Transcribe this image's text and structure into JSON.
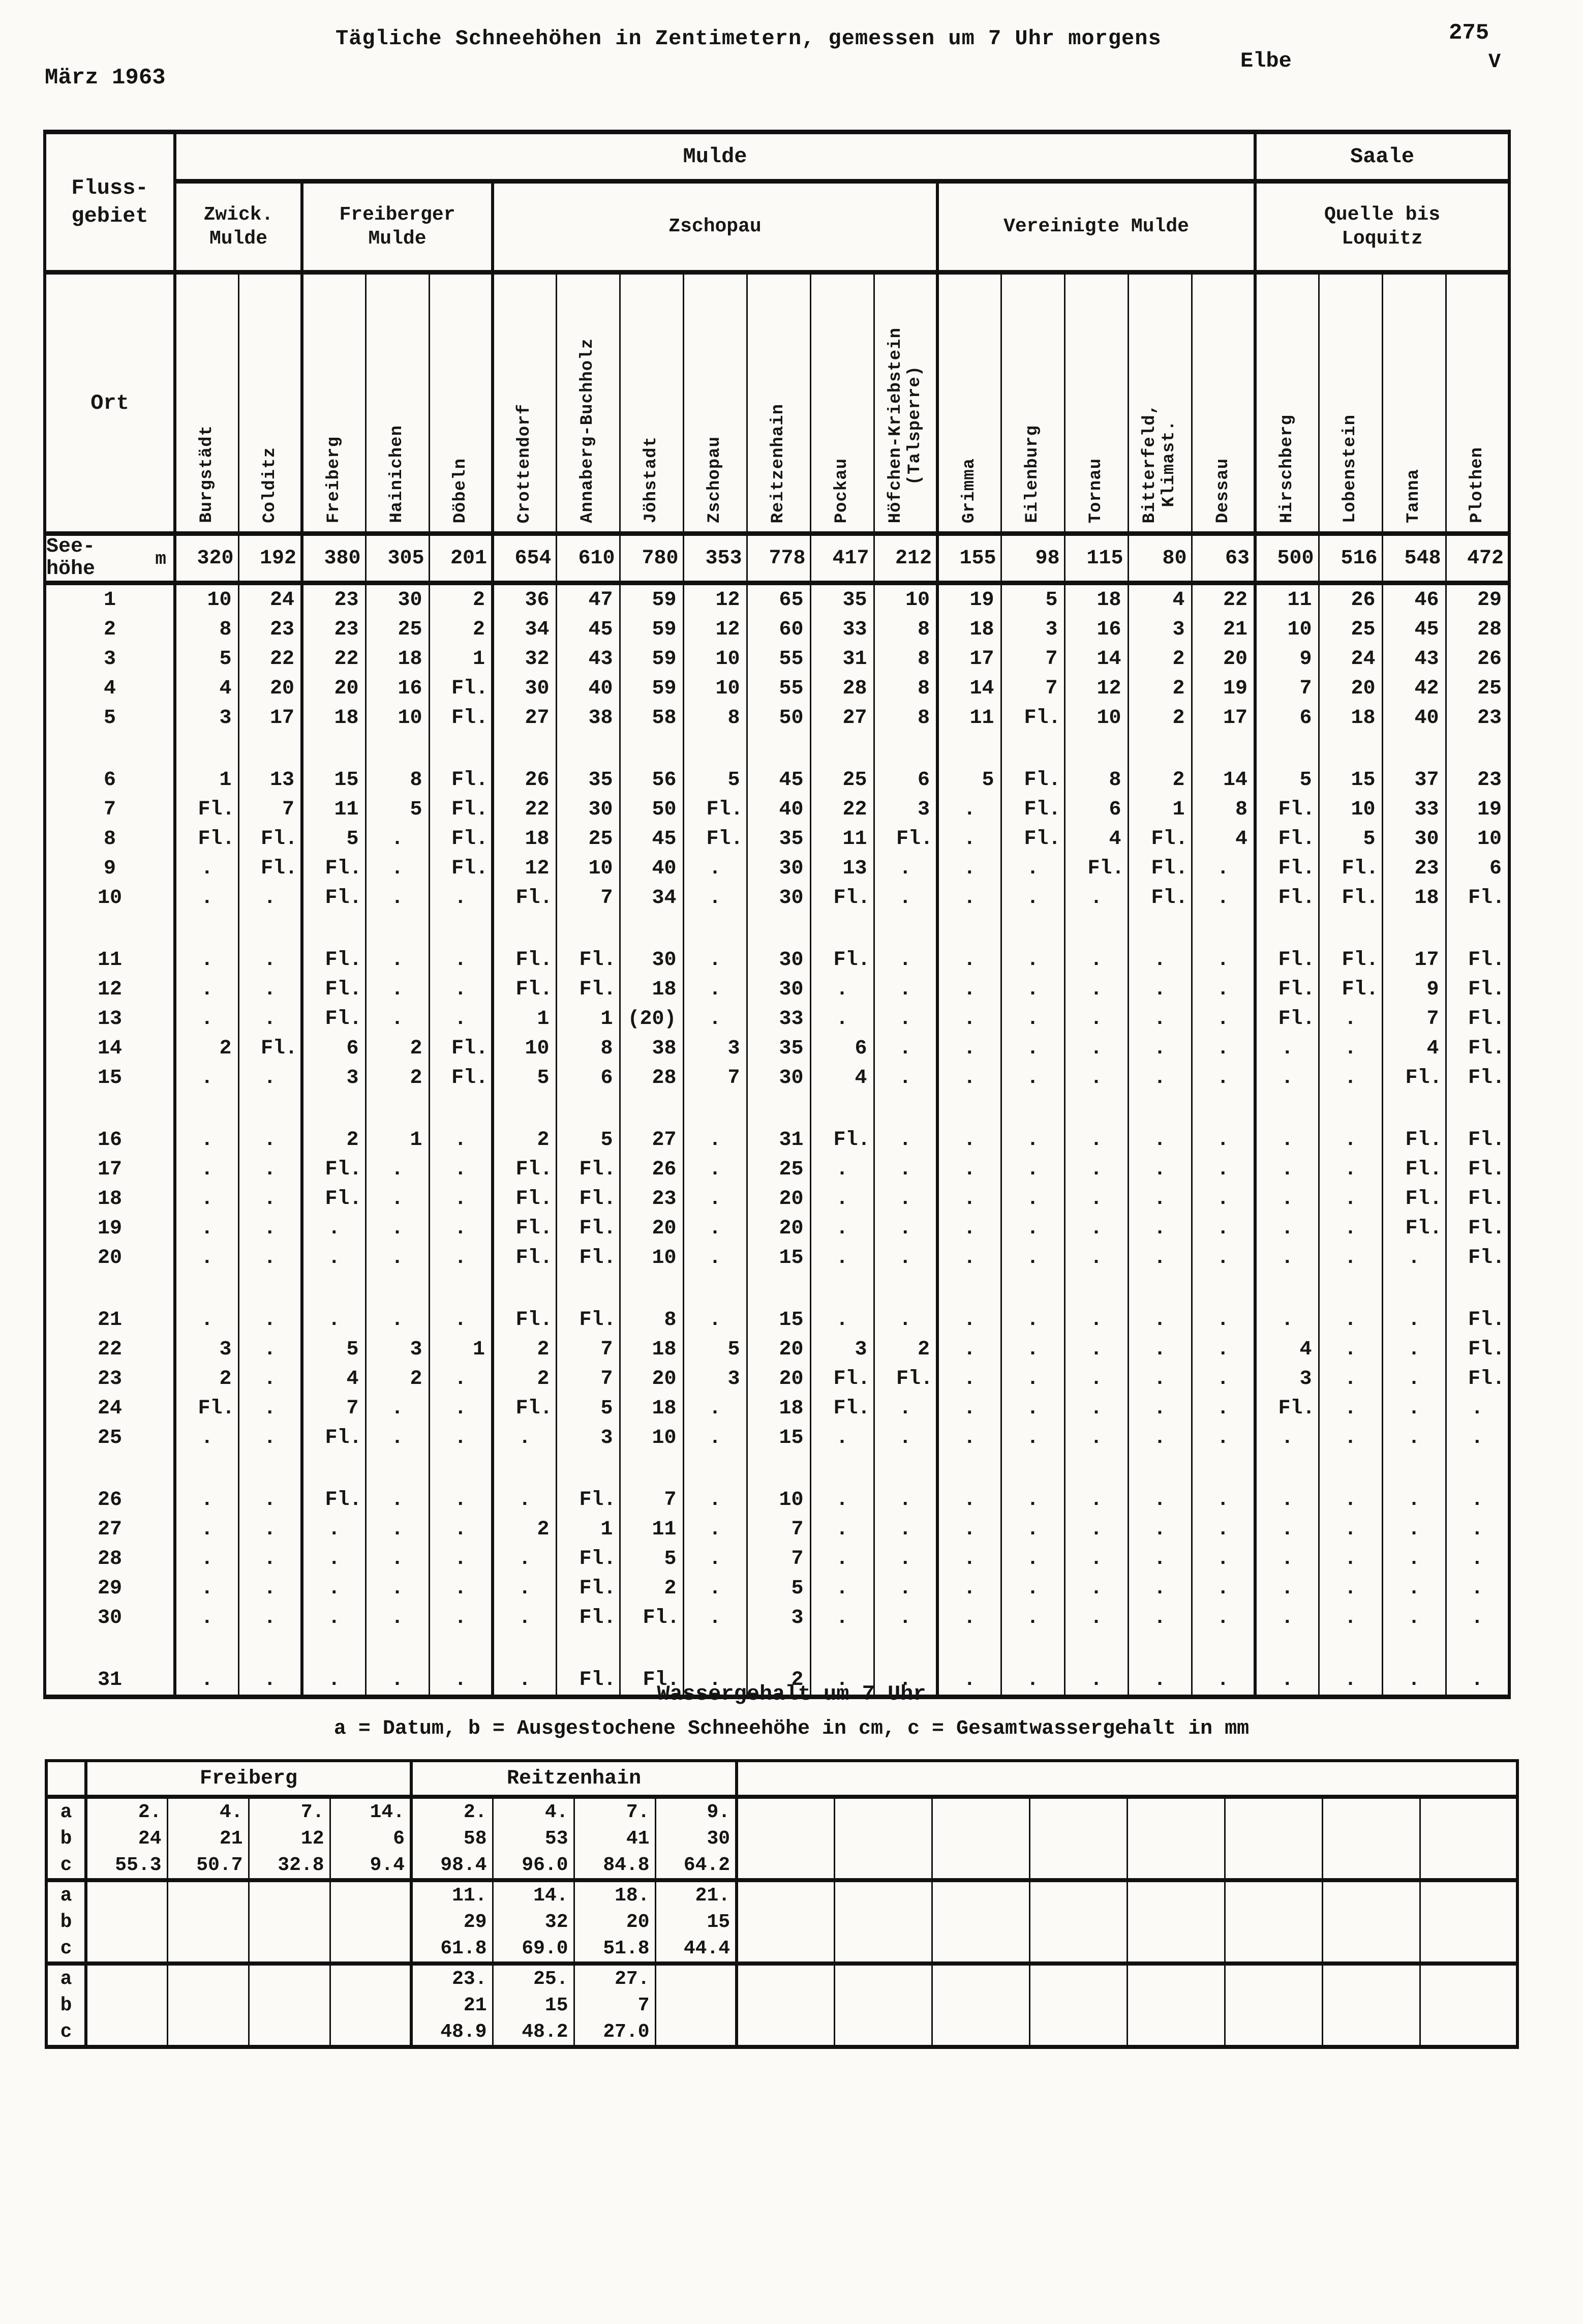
{
  "header": {
    "title": "Tägliche Schneehöhen in Zentimetern, gemessen um 7 Uhr morgens",
    "month": "März 1963",
    "river": "Elbe",
    "page_number": "275",
    "volume": "V"
  },
  "table": {
    "corner_label": "Fluss-\ngebiet",
    "ort_label": "Ort",
    "seehoehe_label": "See-\nhöhe",
    "seehoehe_unit": "m",
    "groups": [
      {
        "label": "Mulde",
        "span": 17
      },
      {
        "label": "Saale",
        "span": 4
      }
    ],
    "subgroups": [
      {
        "label": "Zwick.\nMulde",
        "span": 2
      },
      {
        "label": "Freiberger\nMulde",
        "span": 3
      },
      {
        "label": "Zschopau",
        "span": 7
      },
      {
        "label": "Vereinigte Mulde",
        "span": 5
      },
      {
        "label": "Quelle bis\nLoquitz",
        "span": 4
      }
    ],
    "stations": [
      "Burgstädt",
      "Colditz",
      "Freiberg",
      "Hainichen",
      "Döbeln",
      "Crottendorf",
      "Annaberg-Buchholz",
      "Jöhstadt",
      "Zschopau",
      "Reitzenhain",
      "Pockau",
      "Höfchen-Kriebstein\n(Talsperre)",
      "Grimma",
      "Eilenburg",
      "Tornau",
      "Bitterfeld,\nKlimast.",
      "Dessau",
      "Hirschberg",
      "Lobenstein",
      "Tanna",
      "Plothen"
    ],
    "elevations": [
      "320",
      "192",
      "380",
      "305",
      "201",
      "654",
      "610",
      "780",
      "353",
      "778",
      "417",
      "212",
      "155",
      "98",
      "115",
      "80",
      "63",
      "500",
      "516",
      "548",
      "472"
    ],
    "days": [
      {
        "day": "1",
        "values": [
          "10",
          "24",
          "23",
          "30",
          "2",
          "36",
          "47",
          "59",
          "12",
          "65",
          "35",
          "10",
          "19",
          "5",
          "18",
          "4",
          "22",
          "11",
          "26",
          "46",
          "29"
        ]
      },
      {
        "day": "2",
        "values": [
          "8",
          "23",
          "23",
          "25",
          "2",
          "34",
          "45",
          "59",
          "12",
          "60",
          "33",
          "8",
          "18",
          "3",
          "16",
          "3",
          "21",
          "10",
          "25",
          "45",
          "28"
        ]
      },
      {
        "day": "3",
        "values": [
          "5",
          "22",
          "22",
          "18",
          "1",
          "32",
          "43",
          "59",
          "10",
          "55",
          "31",
          "8",
          "17",
          "7",
          "14",
          "2",
          "20",
          "9",
          "24",
          "43",
          "26"
        ]
      },
      {
        "day": "4",
        "values": [
          "4",
          "20",
          "20",
          "16",
          "Fl.",
          "30",
          "40",
          "59",
          "10",
          "55",
          "28",
          "8",
          "14",
          "7",
          "12",
          "2",
          "19",
          "7",
          "20",
          "42",
          "25"
        ]
      },
      {
        "day": "5",
        "values": [
          "3",
          "17",
          "18",
          "10",
          "Fl.",
          "27",
          "38",
          "58",
          "8",
          "50",
          "27",
          "8",
          "11",
          "Fl.",
          "10",
          "2",
          "17",
          "6",
          "18",
          "40",
          "23"
        ]
      },
      {
        "day": "6",
        "values": [
          "1",
          "13",
          "15",
          "8",
          "Fl.",
          "26",
          "35",
          "56",
          "5",
          "45",
          "25",
          "6",
          "5",
          "Fl.",
          "8",
          "2",
          "14",
          "5",
          "15",
          "37",
          "23"
        ]
      },
      {
        "day": "7",
        "values": [
          "Fl.",
          "7",
          "11",
          "5",
          "Fl.",
          "22",
          "30",
          "50",
          "Fl.",
          "40",
          "22",
          "3",
          ".",
          "Fl.",
          "6",
          "1",
          "8",
          "Fl.",
          "10",
          "33",
          "19"
        ]
      },
      {
        "day": "8",
        "values": [
          "Fl.",
          "Fl.",
          "5",
          ".",
          "Fl.",
          "18",
          "25",
          "45",
          "Fl.",
          "35",
          "11",
          "Fl.",
          ".",
          "Fl.",
          "4",
          "Fl.",
          "4",
          "Fl.",
          "5",
          "30",
          "10"
        ]
      },
      {
        "day": "9",
        "values": [
          ".",
          "Fl.",
          "Fl.",
          ".",
          "Fl.",
          "12",
          "10",
          "40",
          ".",
          "30",
          "13",
          ".",
          ".",
          ".",
          "Fl.",
          "Fl.",
          ".",
          "Fl.",
          "Fl.",
          "23",
          "6"
        ]
      },
      {
        "day": "10",
        "values": [
          ".",
          ".",
          "Fl.",
          ".",
          ".",
          "Fl.",
          "7",
          "34",
          ".",
          "30",
          "Fl.",
          ".",
          ".",
          ".",
          ".",
          "Fl.",
          ".",
          "Fl.",
          "Fl.",
          "18",
          "Fl."
        ]
      },
      {
        "day": "11",
        "values": [
          ".",
          ".",
          "Fl.",
          ".",
          ".",
          "Fl.",
          "Fl.",
          "30",
          ".",
          "30",
          "Fl.",
          ".",
          ".",
          ".",
          ".",
          ".",
          ".",
          "Fl.",
          "Fl.",
          "17",
          "Fl."
        ]
      },
      {
        "day": "12",
        "values": [
          ".",
          ".",
          "Fl.",
          ".",
          ".",
          "Fl.",
          "Fl.",
          "18",
          ".",
          "30",
          ".",
          ".",
          ".",
          ".",
          ".",
          ".",
          ".",
          "Fl.",
          "Fl.",
          "9",
          "Fl."
        ]
      },
      {
        "day": "13",
        "values": [
          ".",
          ".",
          "Fl.",
          ".",
          ".",
          "1",
          "1",
          "(20)",
          ".",
          "33",
          ".",
          ".",
          ".",
          ".",
          ".",
          ".",
          ".",
          "Fl.",
          ".",
          "7",
          "Fl."
        ]
      },
      {
        "day": "14",
        "values": [
          "2",
          "Fl.",
          "6",
          "2",
          "Fl.",
          "10",
          "8",
          "38",
          "3",
          "35",
          "6",
          ".",
          ".",
          ".",
          ".",
          ".",
          ".",
          ".",
          ".",
          "4",
          "Fl."
        ]
      },
      {
        "day": "15",
        "values": [
          ".",
          ".",
          "3",
          "2",
          "Fl.",
          "5",
          "6",
          "28",
          "7",
          "30",
          "4",
          ".",
          ".",
          ".",
          ".",
          ".",
          ".",
          ".",
          ".",
          "Fl.",
          "Fl."
        ]
      },
      {
        "day": "16",
        "values": [
          ".",
          ".",
          "2",
          "1",
          ".",
          "2",
          "5",
          "27",
          ".",
          "31",
          "Fl.",
          ".",
          ".",
          ".",
          ".",
          ".",
          ".",
          ".",
          ".",
          "Fl.",
          "Fl."
        ]
      },
      {
        "day": "17",
        "values": [
          ".",
          ".",
          "Fl.",
          ".",
          ".",
          "Fl.",
          "Fl.",
          "26",
          ".",
          "25",
          ".",
          ".",
          ".",
          ".",
          ".",
          ".",
          ".",
          ".",
          ".",
          "Fl.",
          "Fl."
        ]
      },
      {
        "day": "18",
        "values": [
          ".",
          ".",
          "Fl.",
          ".",
          ".",
          "Fl.",
          "Fl.",
          "23",
          ".",
          "20",
          ".",
          ".",
          ".",
          ".",
          ".",
          ".",
          ".",
          ".",
          ".",
          "Fl.",
          "Fl."
        ]
      },
      {
        "day": "19",
        "values": [
          ".",
          ".",
          ".",
          ".",
          ".",
          "Fl.",
          "Fl.",
          "20",
          ".",
          "20",
          ".",
          ".",
          ".",
          ".",
          ".",
          ".",
          ".",
          ".",
          ".",
          "Fl.",
          "Fl."
        ]
      },
      {
        "day": "20",
        "values": [
          ".",
          ".",
          ".",
          ".",
          ".",
          "Fl.",
          "Fl.",
          "10",
          ".",
          "15",
          ".",
          ".",
          ".",
          ".",
          ".",
          ".",
          ".",
          ".",
          ".",
          ".",
          "Fl."
        ]
      },
      {
        "day": "21",
        "values": [
          ".",
          ".",
          ".",
          ".",
          ".",
          "Fl.",
          "Fl.",
          "8",
          ".",
          "15",
          ".",
          ".",
          ".",
          ".",
          ".",
          ".",
          ".",
          ".",
          ".",
          ".",
          "Fl."
        ]
      },
      {
        "day": "22",
        "values": [
          "3",
          ".",
          "5",
          "3",
          "1",
          "2",
          "7",
          "18",
          "5",
          "20",
          "3",
          "2",
          ".",
          ".",
          ".",
          ".",
          ".",
          "4",
          ".",
          ".",
          "Fl."
        ]
      },
      {
        "day": "23",
        "values": [
          "2",
          ".",
          "4",
          "2",
          ".",
          "2",
          "7",
          "20",
          "3",
          "20",
          "Fl.",
          "Fl.",
          ".",
          ".",
          ".",
          ".",
          ".",
          "3",
          ".",
          ".",
          "Fl."
        ]
      },
      {
        "day": "24",
        "values": [
          "Fl.",
          ".",
          "7",
          ".",
          ".",
          "Fl.",
          "5",
          "18",
          ".",
          "18",
          "Fl.",
          ".",
          ".",
          ".",
          ".",
          ".",
          ".",
          "Fl.",
          ".",
          ".",
          "."
        ]
      },
      {
        "day": "25",
        "values": [
          ".",
          ".",
          "Fl.",
          ".",
          ".",
          ".",
          "3",
          "10",
          ".",
          "15",
          ".",
          ".",
          ".",
          ".",
          ".",
          ".",
          ".",
          ".",
          ".",
          ".",
          "."
        ]
      },
      {
        "day": "26",
        "values": [
          ".",
          ".",
          "Fl.",
          ".",
          ".",
          ".",
          "Fl.",
          "7",
          ".",
          "10",
          ".",
          ".",
          ".",
          ".",
          ".",
          ".",
          ".",
          ".",
          ".",
          ".",
          "."
        ]
      },
      {
        "day": "27",
        "values": [
          ".",
          ".",
          ".",
          ".",
          ".",
          "2",
          "1",
          "11",
          ".",
          "7",
          ".",
          ".",
          ".",
          ".",
          ".",
          ".",
          ".",
          ".",
          ".",
          ".",
          "."
        ]
      },
      {
        "day": "28",
        "values": [
          ".",
          ".",
          ".",
          ".",
          ".",
          ".",
          "Fl.",
          "5",
          ".",
          "7",
          ".",
          ".",
          ".",
          ".",
          ".",
          ".",
          ".",
          ".",
          ".",
          ".",
          "."
        ]
      },
      {
        "day": "29",
        "values": [
          ".",
          ".",
          ".",
          ".",
          ".",
          ".",
          "Fl.",
          "2",
          ".",
          "5",
          ".",
          ".",
          ".",
          ".",
          ".",
          ".",
          ".",
          ".",
          ".",
          ".",
          "."
        ]
      },
      {
        "day": "30",
        "values": [
          ".",
          ".",
          ".",
          ".",
          ".",
          ".",
          "Fl.",
          "Fl.",
          ".",
          "3",
          ".",
          ".",
          ".",
          ".",
          ".",
          ".",
          ".",
          ".",
          ".",
          ".",
          "."
        ]
      },
      {
        "day": "31",
        "values": [
          ".",
          ".",
          ".",
          ".",
          ".",
          ".",
          "Fl.",
          "Fl.",
          ".",
          "2",
          ".",
          ".",
          ".",
          ".",
          ".",
          ".",
          ".",
          ".",
          ".",
          ".",
          "."
        ]
      }
    ]
  },
  "footer": {
    "title": "Wassergehalt um 7 Uhr",
    "legend": "a = Datum, b = Ausgestochene Schneehöhe in cm, c = Gesamtwassergehalt in mm"
  },
  "bottom_table": {
    "station_headers": [
      {
        "label": "Freiberg",
        "span": 4
      },
      {
        "label": "Reitzenhain",
        "span": 4
      },
      {
        "label": "",
        "span": 8
      }
    ],
    "blocks": [
      {
        "a": [
          "2.",
          "4.",
          "7.",
          "14.",
          "2.",
          "4.",
          "7.",
          "9.",
          "",
          "",
          "",
          "",
          "",
          "",
          "",
          ""
        ],
        "b": [
          "24",
          "21",
          "12",
          "6",
          "58",
          "53",
          "41",
          "30",
          "",
          "",
          "",
          "",
          "",
          "",
          "",
          ""
        ],
        "c": [
          "55.3",
          "50.7",
          "32.8",
          "9.4",
          "98.4",
          "96.0",
          "84.8",
          "64.2",
          "",
          "",
          "",
          "",
          "",
          "",
          "",
          ""
        ]
      },
      {
        "a": [
          "",
          "",
          "",
          "",
          "11.",
          "14.",
          "18.",
          "21.",
          "",
          "",
          "",
          "",
          "",
          "",
          "",
          ""
        ],
        "b": [
          "",
          "",
          "",
          "",
          "29",
          "32",
          "20",
          "15",
          "",
          "",
          "",
          "",
          "",
          "",
          "",
          ""
        ],
        "c": [
          "",
          "",
          "",
          "",
          "61.8",
          "69.0",
          "51.8",
          "44.4",
          "",
          "",
          "",
          "",
          "",
          "",
          "",
          ""
        ]
      },
      {
        "a": [
          "",
          "",
          "",
          "",
          "23.",
          "25.",
          "27.",
          "",
          "",
          "",
          "",
          "",
          "",
          "",
          "",
          ""
        ],
        "b": [
          "",
          "",
          "",
          "",
          "21",
          "15",
          "7",
          "",
          "",
          "",
          "",
          "",
          "",
          "",
          "",
          ""
        ],
        "c": [
          "",
          "",
          "",
          "",
          "48.9",
          "48.2",
          "27.0",
          "",
          "",
          "",
          "",
          "",
          "",
          "",
          "",
          ""
        ]
      }
    ]
  }
}
